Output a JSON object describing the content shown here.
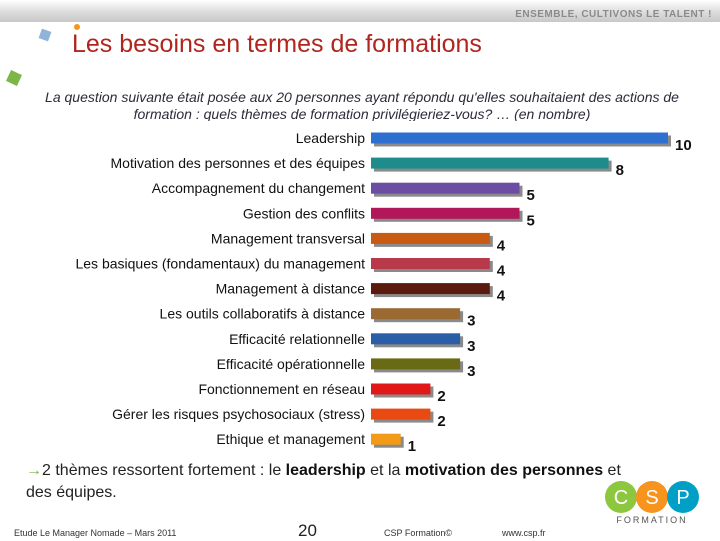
{
  "header": {
    "slogan": "ENSEMBLE, CULTIVONS LE TALENT !",
    "title": "Les besoins en termes de formations",
    "intro": "La question suivante était posée aux 20 personnes ayant répondu qu'elles souhaitaient des actions de formation : quels thèmes de formation privilégieriez-vous? … (en nombre)"
  },
  "chart_data": {
    "type": "bar",
    "orientation": "horizontal",
    "categories": [
      "Leadership",
      "Motivation des personnes et des équipes",
      "Accompagnement du changement",
      "Gestion des conflits",
      "Management transversal",
      "Les basiques (fondamentaux) du management",
      "Management à distance",
      "Les outils collaboratifs à distance",
      "Efficacité relationnelle",
      "Efficacité opérationnelle",
      "Fonctionnement en réseau",
      "Gérer les risques psychosociaux (stress)",
      "Ethique et management"
    ],
    "values": [
      10,
      8,
      5,
      5,
      4,
      4,
      4,
      3,
      3,
      3,
      2,
      2,
      1
    ],
    "colors": [
      "#2e6fd0",
      "#1f8c8c",
      "#6b4ea3",
      "#b0185a",
      "#c85a12",
      "#b83a4a",
      "#5a1a0e",
      "#9a6a32",
      "#2a5fa8",
      "#6a6a14",
      "#e01818",
      "#e84a12",
      "#f39a18"
    ],
    "xlim": [
      0,
      10
    ],
    "grid": false,
    "legend": "none"
  },
  "conclusion": {
    "arrow": "→",
    "part1": "2 thèmes ressortent fortement : le ",
    "bold1": "leadership",
    "part2": " et la ",
    "bold2": "motivation des personnes",
    "part3": " et des équipes."
  },
  "footer": {
    "left": "Etude Le Manager Nomade – Mars 2011",
    "page": "20",
    "center": "CSP Formation©",
    "right": "www.csp.fr"
  },
  "logo": {
    "letters": [
      "C",
      "S",
      "P"
    ],
    "sub": "FORMATION",
    "colors": [
      "#8dc63f",
      "#f7941d",
      "#00a0c6"
    ]
  }
}
